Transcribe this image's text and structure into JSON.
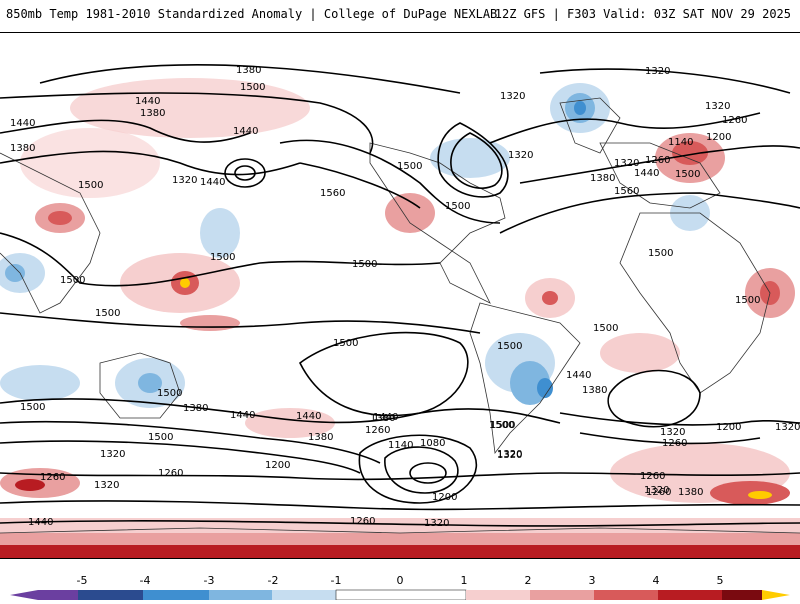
{
  "header": {
    "title": "850mb Temp 1981-2010 Standardized Anomaly | College of DuPage NEXLAB",
    "run_info": "12Z GFS | F303 Valid: 03Z SAT NOV 29 2025"
  },
  "map": {
    "variable": "850mb temperature standardized anomaly",
    "contour_variable": "850mb geopotential height",
    "contour_labels": [
      {
        "id": "c1380-a",
        "text": "1380"
      },
      {
        "id": "c1500-a",
        "text": "1500"
      },
      {
        "id": "c1440-a",
        "text": "1440"
      },
      {
        "id": "c1380-b",
        "text": "1380"
      },
      {
        "id": "c1440-b",
        "text": "1440"
      },
      {
        "id": "c1440-c",
        "text": "1440"
      },
      {
        "id": "c1380-c",
        "text": "1380"
      },
      {
        "id": "c1500-b",
        "text": "1500"
      },
      {
        "id": "c1320-a",
        "text": "1320"
      },
      {
        "id": "c1440-d",
        "text": "1440"
      },
      {
        "id": "c1560-a",
        "text": "1560"
      },
      {
        "id": "c1500-c",
        "text": "1500"
      },
      {
        "id": "c1500-d",
        "text": "1500"
      },
      {
        "id": "c1500-e",
        "text": "1500"
      },
      {
        "id": "c1500-f",
        "text": "1500"
      },
      {
        "id": "c1500-g",
        "text": "1500"
      },
      {
        "id": "c1500-h",
        "text": "1500"
      },
      {
        "id": "c1320-b",
        "text": "1320"
      },
      {
        "id": "c1320-c",
        "text": "1320"
      },
      {
        "id": "c1320-d",
        "text": "1320"
      },
      {
        "id": "c1380-d",
        "text": "1380"
      },
      {
        "id": "c1560-b",
        "text": "1560"
      },
      {
        "id": "c1320-e",
        "text": "1320"
      },
      {
        "id": "c1320-f",
        "text": "1320"
      },
      {
        "id": "c1260-a",
        "text": "1260"
      },
      {
        "id": "c1200-a",
        "text": "1200"
      },
      {
        "id": "c1140-a",
        "text": "1140"
      },
      {
        "id": "c1260-b",
        "text": "1260"
      },
      {
        "id": "c1440-e",
        "text": "1440"
      },
      {
        "id": "c1500-i",
        "text": "1500"
      },
      {
        "id": "c1500-j",
        "text": "1500"
      },
      {
        "id": "c1500-k",
        "text": "1500"
      },
      {
        "id": "c1500-l",
        "text": "1500"
      },
      {
        "id": "c1500-m",
        "text": "1500"
      },
      {
        "id": "c1500-n",
        "text": "1500"
      },
      {
        "id": "c1500-o",
        "text": "1500"
      },
      {
        "id": "c1500-p",
        "text": "1500"
      },
      {
        "id": "c1440-f",
        "text": "1440"
      },
      {
        "id": "c1380-e",
        "text": "1380"
      },
      {
        "id": "c1500-q",
        "text": "1500"
      },
      {
        "id": "c1440-g",
        "text": "1440"
      },
      {
        "id": "c1380-f",
        "text": "1380"
      },
      {
        "id": "c1320-g",
        "text": "1320"
      },
      {
        "id": "c1500-r",
        "text": "1500"
      },
      {
        "id": "c1320-h",
        "text": "1320"
      },
      {
        "id": "c1260-c",
        "text": "1260"
      },
      {
        "id": "c1140-b",
        "text": "1140"
      },
      {
        "id": "c1080-a",
        "text": "1080"
      },
      {
        "id": "c1380-g",
        "text": "1380"
      },
      {
        "id": "c1440-h",
        "text": "1440"
      },
      {
        "id": "c1500-s",
        "text": "1500"
      },
      {
        "id": "c1440-i",
        "text": "1440"
      },
      {
        "id": "c1380-h",
        "text": "1380"
      },
      {
        "id": "c1320-i",
        "text": "1320"
      },
      {
        "id": "c1260-d",
        "text": "1260"
      },
      {
        "id": "c1200-b",
        "text": "1200"
      },
      {
        "id": "c1320-j",
        "text": "1320"
      },
      {
        "id": "c1200-c",
        "text": "1200"
      },
      {
        "id": "c1260-e",
        "text": "1260"
      },
      {
        "id": "c1260-f",
        "text": "1260"
      },
      {
        "id": "c1320-k",
        "text": "1320"
      },
      {
        "id": "c1200-d",
        "text": "1200"
      },
      {
        "id": "c1260-g",
        "text": "1260"
      },
      {
        "id": "c1320-l",
        "text": "1320"
      },
      {
        "id": "c1260-h",
        "text": "1260"
      },
      {
        "id": "c1320-m",
        "text": "1320"
      },
      {
        "id": "c1380-i",
        "text": "1380"
      },
      {
        "id": "c1440-j",
        "text": "1440"
      },
      {
        "id": "c1320-n",
        "text": "1320"
      },
      {
        "id": "c1260-i",
        "text": "1260"
      }
    ]
  },
  "colorbar": {
    "ticks": [
      "-5",
      "-4",
      "-3",
      "-2",
      "-1",
      "0",
      "1",
      "2",
      "3",
      "4",
      "5"
    ],
    "colors": {
      "m5": "#6b3fa0",
      "m4": "#2b4b8f",
      "m3": "#3f8fd0",
      "m2": "#7fb6e0",
      "m1": "#c6ddf0",
      "z": "#ffffff",
      "p1": "#f6cfcf",
      "p2": "#e9a0a0",
      "p3": "#d85a5a",
      "p4": "#b81c22",
      "p5": "#7a0a10",
      "p6": "#ffcc00"
    }
  }
}
